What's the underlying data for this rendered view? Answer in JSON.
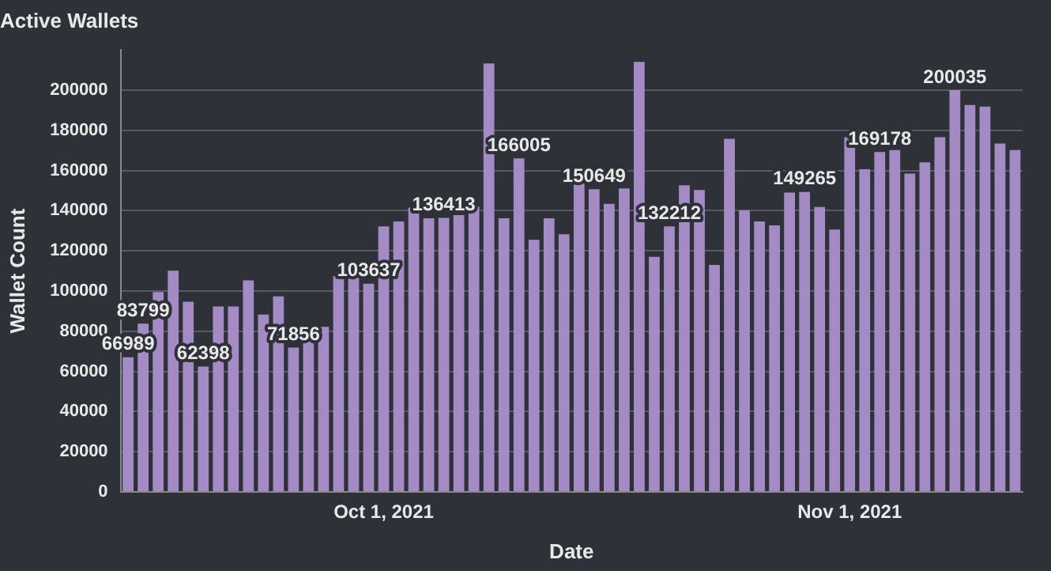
{
  "chart_data": {
    "type": "bar",
    "title": "Active Wallets",
    "xlabel": "Date",
    "ylabel": "Wallet Count",
    "categories": [
      null,
      null,
      null,
      null,
      null,
      null,
      null,
      null,
      null,
      null,
      null,
      null,
      null,
      null,
      null,
      null,
      null,
      "Oct 1, 2021",
      null,
      null,
      null,
      null,
      null,
      null,
      null,
      null,
      null,
      null,
      null,
      null,
      null,
      null,
      null,
      null,
      null,
      null,
      null,
      null,
      null,
      null,
      null,
      null,
      null,
      null,
      null,
      null,
      null,
      null,
      "Nov 1, 2021",
      null,
      null,
      null,
      null,
      null,
      null,
      null,
      null,
      null,
      null,
      null
    ],
    "values": [
      66989,
      83799,
      99500,
      110100,
      94700,
      62398,
      92300,
      92300,
      105300,
      88300,
      97300,
      71856,
      76300,
      82200,
      107400,
      107400,
      103637,
      132200,
      134600,
      141500,
      136200,
      136413,
      137800,
      142000,
      213300,
      136200,
      166005,
      125500,
      136200,
      128200,
      154300,
      150649,
      143400,
      151100,
      214100,
      117000,
      132212,
      152700,
      150300,
      113000,
      175800,
      140200,
      134600,
      132700,
      149000,
      149265,
      141800,
      130600,
      176600,
      160600,
      169178,
      170200,
      158500,
      164100,
      176600,
      200035,
      192600,
      191800,
      173400,
      170200
    ],
    "value_labels": [
      "66989",
      "83799",
      null,
      null,
      null,
      "62398",
      null,
      null,
      null,
      null,
      null,
      "71856",
      null,
      null,
      null,
      null,
      "103637",
      null,
      null,
      null,
      null,
      "136413",
      null,
      null,
      null,
      null,
      "166005",
      null,
      null,
      null,
      null,
      "150649",
      null,
      null,
      null,
      null,
      "132212",
      null,
      null,
      null,
      null,
      null,
      null,
      null,
      null,
      "149265",
      null,
      null,
      null,
      null,
      "169178",
      null,
      null,
      null,
      null,
      "200035",
      null,
      null,
      null,
      null
    ],
    "color": "#a58bc6",
    "ylim": [
      0,
      220000
    ],
    "yticks": [
      0,
      20000,
      40000,
      60000,
      80000,
      100000,
      120000,
      140000,
      160000,
      180000,
      200000
    ],
    "grid": "y"
  }
}
